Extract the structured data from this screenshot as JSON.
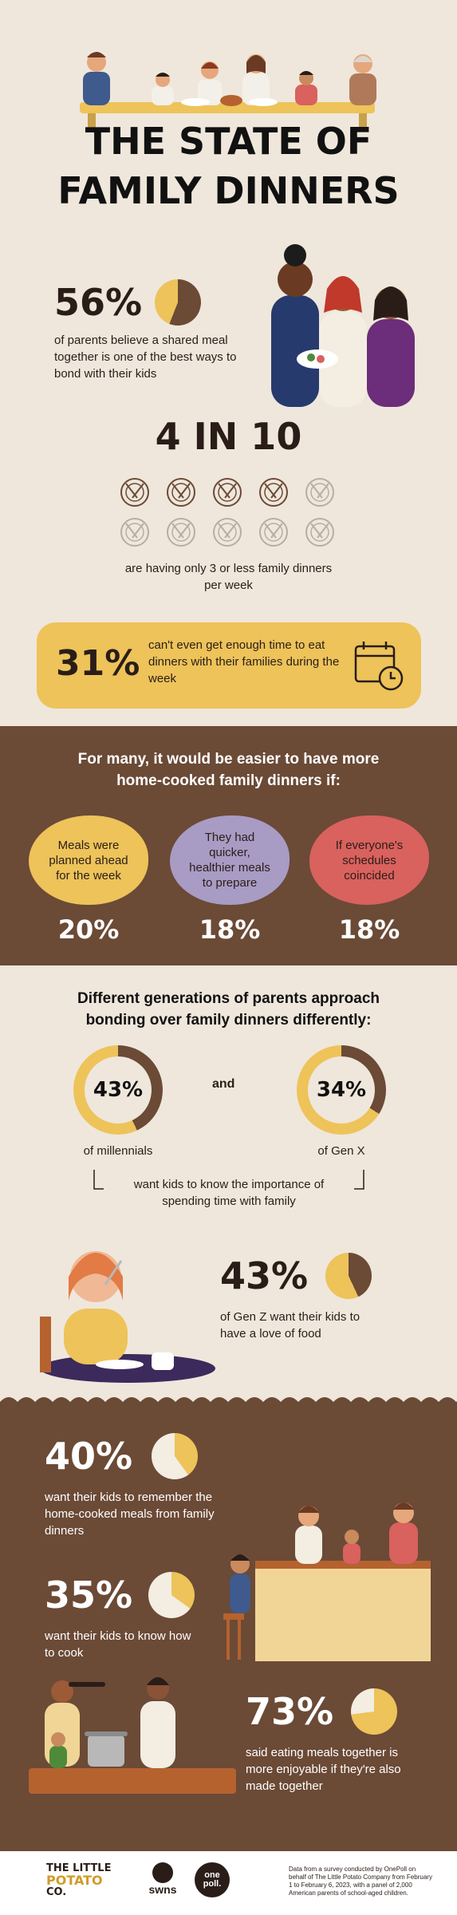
{
  "header": {
    "title_line1": "THE STATE OF",
    "title_line2": "FAMILY DINNERS"
  },
  "stat_bond": {
    "value": "56%",
    "fraction": 0.56,
    "text": "of parents believe a shared meal together is one of the best ways to bond with their kids"
  },
  "stat_4in10": {
    "value": "4 IN 10",
    "highlighted": 4,
    "total": 10,
    "text": "are having only 3 or less family dinners per week"
  },
  "stat_time": {
    "value": "31%",
    "text": "can't even get enough time to eat dinners with their families during the week"
  },
  "easier": {
    "heading": "For many, it would be easier to have more home-cooked family dinners if:",
    "items": [
      {
        "label": "Meals were planned ahead for the week",
        "value": "20%",
        "color": "#edc35a"
      },
      {
        "label": "They had quicker, healthier meals to prepare",
        "value": "18%",
        "color": "#a89bc4"
      },
      {
        "label": "If everyone's schedules coincided",
        "value": "18%",
        "color": "#d9615e"
      }
    ]
  },
  "generations": {
    "heading": "Different generations of parents approach bonding over family dinners differently:",
    "millennials": {
      "value": "43%",
      "fraction": 0.43,
      "label": "of millennials"
    },
    "and": "and",
    "genx": {
      "value": "34%",
      "fraction": 0.34,
      "label": "of Gen X"
    },
    "caption": "want kids to know the importance of spending time with family",
    "genz": {
      "value": "43%",
      "fraction": 0.43,
      "text": "of Gen Z want their kids to have a love of food"
    }
  },
  "cooking": {
    "remember": {
      "value": "40%",
      "fraction": 0.4,
      "text": "want their kids to remember the home-cooked meals from family dinners"
    },
    "cook": {
      "value": "35%",
      "fraction": 0.35,
      "text": "want their kids to know how to cook"
    },
    "together": {
      "value": "73%",
      "fraction": 0.73,
      "text": "said eating meals together is more enjoyable if they're also made together"
    }
  },
  "footer": {
    "logo_line1": "THE LITTLE",
    "logo_line2": "POTATO",
    "logo_line3": "CO.",
    "swns": "swns",
    "onepoll": "one poll.",
    "source": "Data from a survey conducted by OnePoll on behalf of The Little Potato Company from February 1 to February 6, 2023, with a panel of 2,000 American parents of school-aged children."
  },
  "colors": {
    "cream": "#efe7dc",
    "brown": "#6b4a36",
    "yellow": "#edc35a",
    "lavender": "#a89bc4",
    "coral": "#d9615e",
    "dark": "#2a1d18"
  }
}
